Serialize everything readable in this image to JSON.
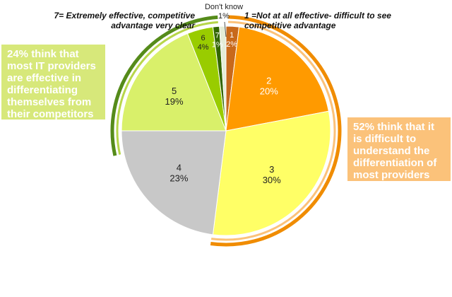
{
  "chart_data": {
    "type": "pie",
    "title": "",
    "slices": [
      {
        "label": "1",
        "value": 2,
        "value_label": "2%",
        "color": "#c8691b"
      },
      {
        "label": "2",
        "value": 20,
        "value_label": "20%",
        "color": "#ff9a00"
      },
      {
        "label": "3",
        "value": 30,
        "value_label": "30%",
        "color": "#ffff66"
      },
      {
        "label": "4",
        "value": 23,
        "value_label": "23%",
        "color": "#c8c8c8"
      },
      {
        "label": "5",
        "value": 19,
        "value_label": "19%",
        "color": "#d9f06a"
      },
      {
        "label": "6",
        "value": 4,
        "value_label": "4%",
        "color": "#99cc00"
      },
      {
        "label": "7",
        "value": 1,
        "value_label": "1%",
        "color": "#336600"
      },
      {
        "label": "Don't know",
        "value": 1,
        "value_label": "1%",
        "color": "#e4ecd8"
      }
    ],
    "annotations": {
      "scale_high": "7= Extremely effective, competitive advantage very clear",
      "scale_low": "1 =Not at all effective- difficult to see competitive advantage",
      "dont_know_label": "Don't know",
      "dont_know_value": "1%",
      "callout_effective": "24% think that most IT providers are effective in differentiating themselves from their competitors",
      "callout_difficult": "52% think that it is difficult to understand the differentiation of most providers"
    },
    "highlight_colors": {
      "effective_arc": "#558b1a",
      "effective_arc_inner": "#b7d64a",
      "difficult_arc": "#f08c00",
      "difficult_arc_inner": "#fbc27a"
    }
  }
}
